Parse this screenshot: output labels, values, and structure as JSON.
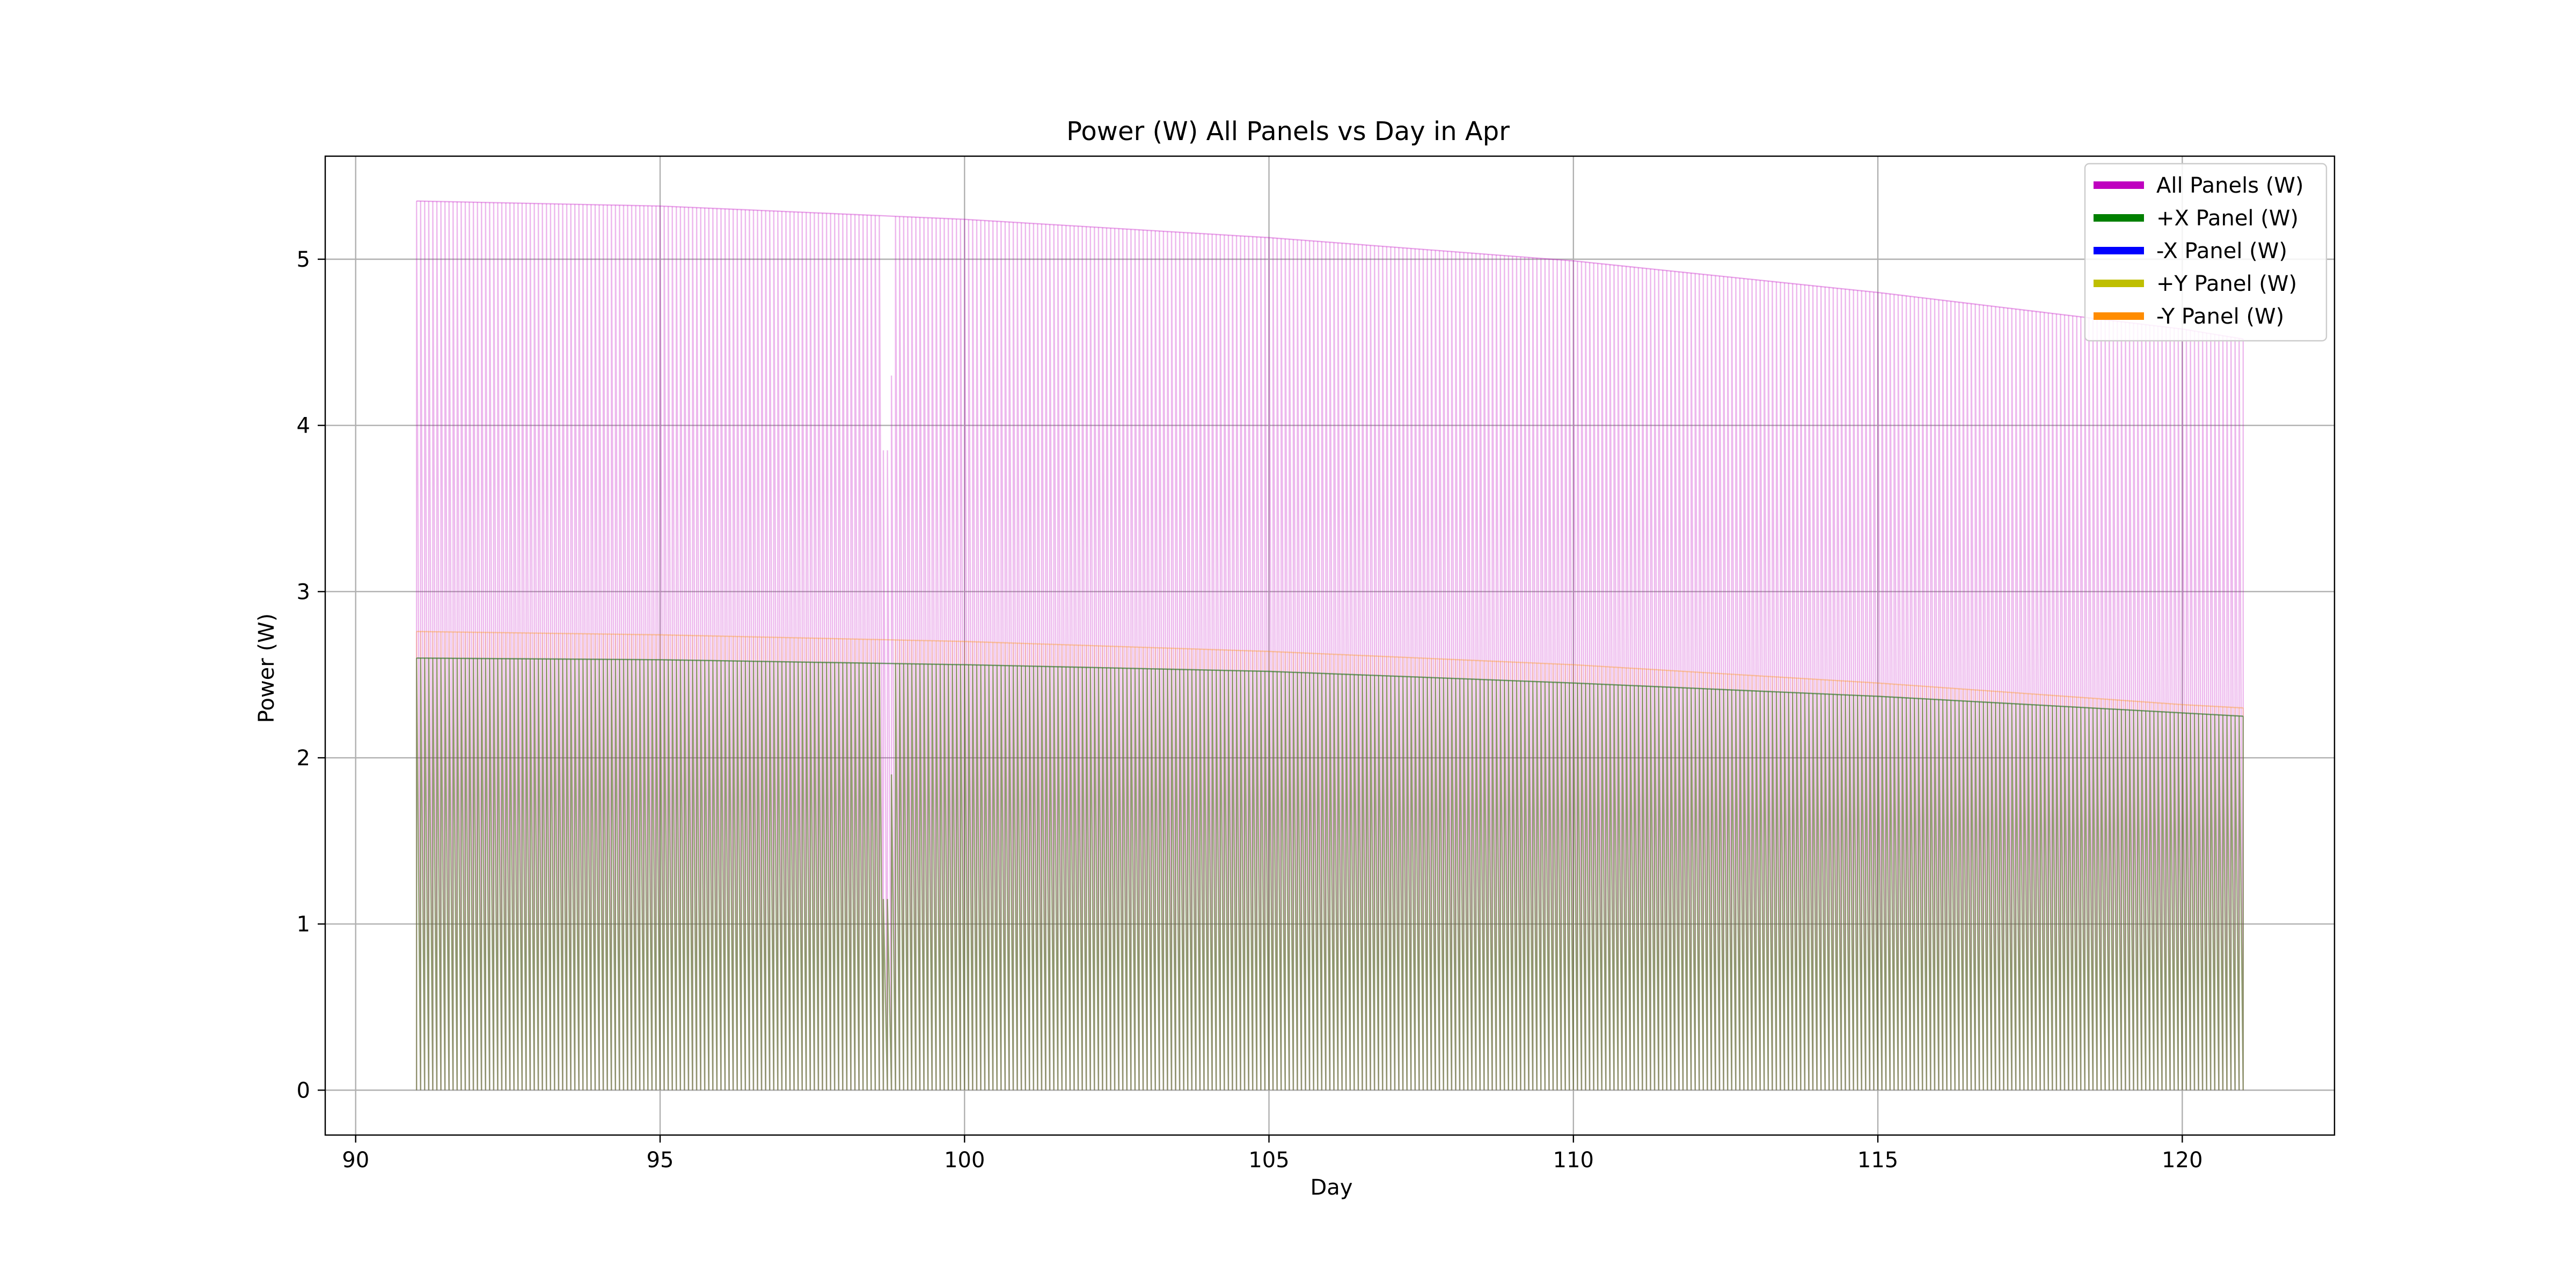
{
  "chart_data": {
    "type": "line",
    "title": "Power (W) All Panels vs Day in Apr",
    "xlabel": "Day",
    "ylabel": "Power (W)",
    "xlim": [
      89.5,
      122.5
    ],
    "ylim": [
      -0.27,
      5.62
    ],
    "xticks": [
      90,
      95,
      100,
      105,
      110,
      115,
      120
    ],
    "yticks": [
      0,
      1,
      2,
      3,
      4,
      5
    ],
    "grid": true,
    "legend_position": "top-right",
    "day_range": [
      91,
      121
    ],
    "cycles_per_day": 15,
    "series": [
      {
        "name": "All Panels (W)",
        "color": "#bf00bf",
        "peak_envelope": {
          "day": [
            91,
            95,
            100,
            105,
            110,
            115,
            120,
            121
          ],
          "value": [
            5.35,
            5.32,
            5.24,
            5.13,
            4.99,
            4.8,
            4.58,
            4.52
          ]
        }
      },
      {
        "name": "+X Panel (W)",
        "color": "#008000",
        "peak_envelope": {
          "day": [
            91,
            95,
            100,
            105,
            110,
            115,
            120,
            121
          ],
          "value": [
            2.6,
            2.59,
            2.56,
            2.52,
            2.45,
            2.37,
            2.27,
            2.25
          ]
        }
      },
      {
        "name": "-X Panel (W)",
        "color": "#0000ff",
        "peak_envelope": {
          "day": [
            91,
            95,
            100,
            105,
            110,
            115,
            120,
            121
          ],
          "value": [
            2.6,
            2.59,
            2.56,
            2.52,
            2.45,
            2.37,
            2.27,
            2.25
          ]
        }
      },
      {
        "name": "+Y Panel (W)",
        "color": "#bfbf00",
        "peak_envelope": {
          "day": [
            91,
            95,
            100,
            105,
            110,
            115,
            120,
            121
          ],
          "value": [
            2.6,
            2.59,
            2.56,
            2.52,
            2.45,
            2.37,
            2.27,
            2.25
          ]
        }
      },
      {
        "name": "-Y Panel (W)",
        "color": "#ff8c00",
        "peak_envelope": {
          "day": [
            91,
            95,
            100,
            105,
            110,
            115,
            120,
            121
          ],
          "value": [
            2.76,
            2.74,
            2.7,
            2.64,
            2.56,
            2.45,
            2.32,
            2.3
          ]
        }
      }
    ],
    "dips": [
      {
        "day": 98.7,
        "all_panels": 3.85,
        "panel": 1.15
      },
      {
        "day": 98.8,
        "all_panels": 4.3,
        "panel": 1.9
      }
    ]
  }
}
